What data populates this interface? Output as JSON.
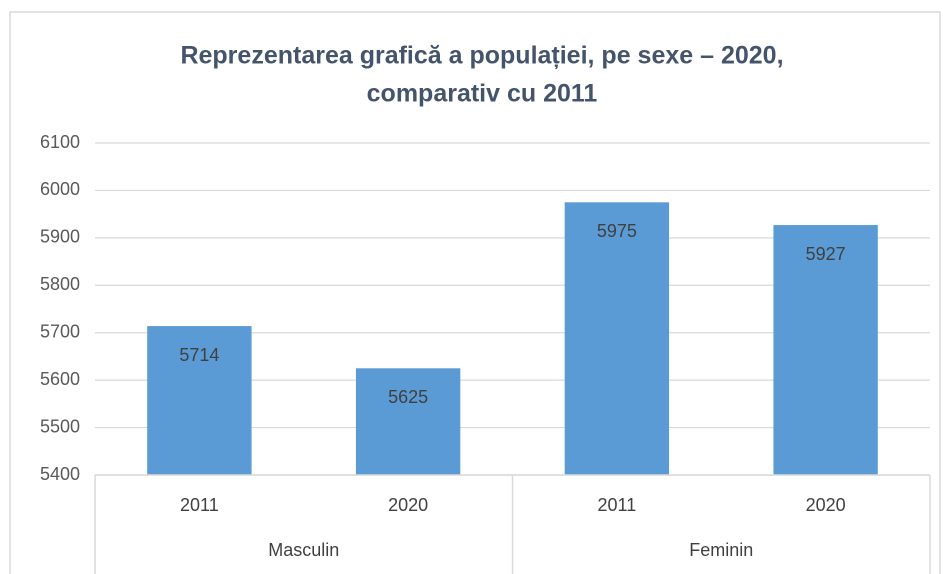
{
  "chart_data": {
    "type": "bar",
    "title": [
      "Reprezentarea grafică a populației, pe sexe – 2020,",
      "comparativ cu 2011"
    ],
    "categories": [
      "2011",
      "2020",
      "2011",
      "2020"
    ],
    "groups": [
      "Masculin",
      "Feminin"
    ],
    "values": [
      5714,
      5625,
      5975,
      5927
    ],
    "color": "#5b9bd5",
    "ylim": [
      5400,
      6100
    ],
    "yticks": [
      5400,
      5500,
      5600,
      5700,
      5800,
      5900,
      6000,
      6100
    ],
    "grid": true
  }
}
